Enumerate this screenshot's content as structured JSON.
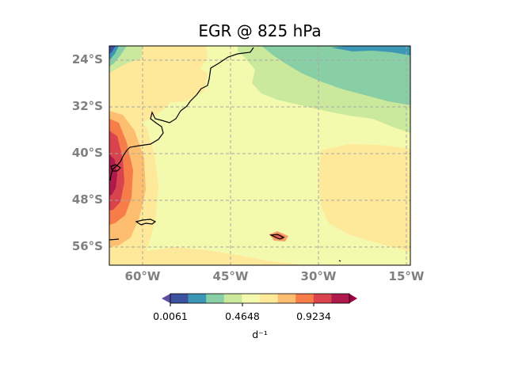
{
  "figure": {
    "title": "EGR  @ 825 hPa"
  },
  "map": {
    "lon_range": [
      -66,
      -15
    ],
    "lat_range": [
      -59,
      -21
    ],
    "lon_ticks": [
      {
        "value": -60,
        "label": "60°W"
      },
      {
        "value": -45,
        "label": "45°W"
      },
      {
        "value": -30,
        "label": "30°W"
      },
      {
        "value": -15,
        "label": "15°W"
      }
    ],
    "lat_ticks": [
      {
        "value": -24,
        "label": "24°S"
      },
      {
        "value": -32,
        "label": "32°S"
      },
      {
        "value": -40,
        "label": "40°S"
      },
      {
        "value": -48,
        "label": "48°S"
      },
      {
        "value": -56,
        "label": "56°S"
      }
    ],
    "gridlines": true,
    "coastline_color": "#000000"
  },
  "colorbar": {
    "unit_label": "d⁻¹",
    "tick_labels": [
      "0.0061",
      "0.4648",
      "0.9234"
    ],
    "colors": [
      "#3e53a0",
      "#3c96b6",
      "#89cfa5",
      "#cbe99d",
      "#f4faad",
      "#fee99a",
      "#fdbf6f",
      "#f67d4a",
      "#d8434e",
      "#ad1a4b"
    ],
    "under_color": "#5e4fa2",
    "over_color": "#9e0142"
  }
}
